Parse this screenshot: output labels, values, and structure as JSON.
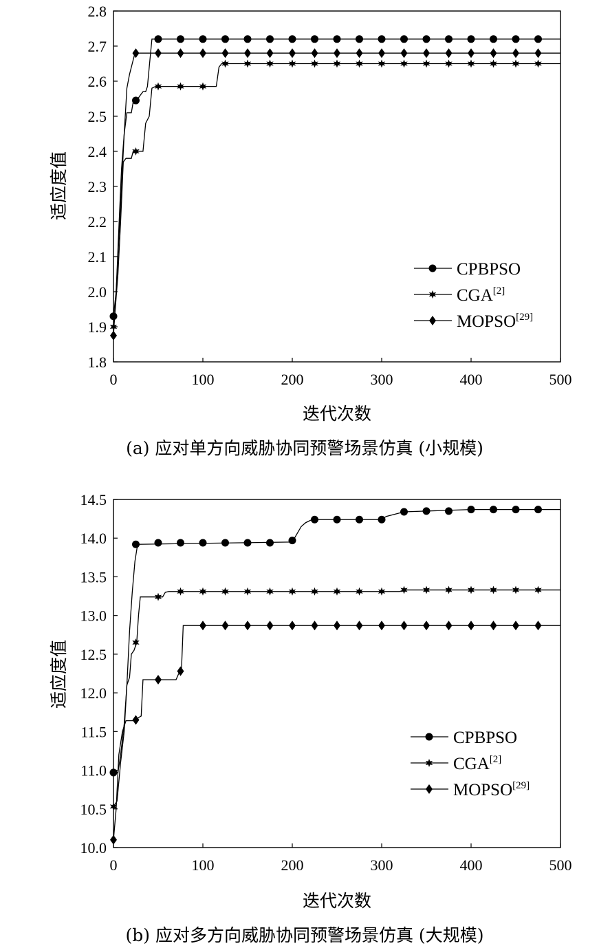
{
  "chart_data": [
    {
      "type": "line",
      "caption": "(a) 应对单方向威胁协同预警场景仿真 (小规模)",
      "xlabel": "迭代次数",
      "ylabel": "适应度值",
      "xlim": [
        0,
        500
      ],
      "ylim": [
        1.8,
        2.8
      ],
      "xticks": [
        "0",
        "100",
        "200",
        "300",
        "400",
        "500"
      ],
      "yticks": [
        "1.8",
        "1.9",
        "2.0",
        "2.1",
        "2.2",
        "2.3",
        "2.4",
        "2.5",
        "2.6",
        "2.7",
        "2.8"
      ],
      "legend_position": "bottom-right",
      "series": [
        {
          "name": "CPBPSO",
          "legend_label": "CPBPSO",
          "legend_sup": "",
          "marker": "circle",
          "points": [
            [
              0,
              1.93
            ],
            [
              3,
              2.0
            ],
            [
              6,
              2.15
            ],
            [
              9,
              2.3
            ],
            [
              12,
              2.45
            ],
            [
              15,
              2.51
            ],
            [
              20,
              2.51
            ],
            [
              22,
              2.54
            ],
            [
              26,
              2.545
            ],
            [
              30,
              2.56
            ],
            [
              33,
              2.57
            ],
            [
              36,
              2.57
            ],
            [
              38,
              2.585
            ],
            [
              40,
              2.64
            ],
            [
              43,
              2.72
            ],
            [
              500,
              2.72
            ]
          ],
          "marker_points": [
            [
              0,
              1.93
            ],
            [
              25,
              2.545
            ],
            [
              50,
              2.72
            ],
            [
              75,
              2.72
            ],
            [
              100,
              2.72
            ],
            [
              125,
              2.72
            ],
            [
              150,
              2.72
            ],
            [
              175,
              2.72
            ],
            [
              200,
              2.72
            ],
            [
              225,
              2.72
            ],
            [
              250,
              2.72
            ],
            [
              275,
              2.72
            ],
            [
              300,
              2.72
            ],
            [
              325,
              2.72
            ],
            [
              350,
              2.72
            ],
            [
              375,
              2.72
            ],
            [
              400,
              2.72
            ],
            [
              425,
              2.72
            ],
            [
              450,
              2.72
            ],
            [
              475,
              2.72
            ]
          ]
        },
        {
          "name": "CGA",
          "legend_label": "CGA",
          "legend_sup": "[2]",
          "marker": "star",
          "points": [
            [
              0,
              1.89
            ],
            [
              2,
              1.95
            ],
            [
              5,
              2.05
            ],
            [
              8,
              2.2
            ],
            [
              11,
              2.37
            ],
            [
              14,
              2.38
            ],
            [
              20,
              2.38
            ],
            [
              22,
              2.4
            ],
            [
              33,
              2.4
            ],
            [
              36,
              2.48
            ],
            [
              40,
              2.5
            ],
            [
              43,
              2.58
            ],
            [
              47,
              2.585
            ],
            [
              115,
              2.585
            ],
            [
              118,
              2.64
            ],
            [
              121,
              2.65
            ],
            [
              500,
              2.65
            ]
          ],
          "marker_points": [
            [
              0,
              1.9
            ],
            [
              25,
              2.4
            ],
            [
              50,
              2.585
            ],
            [
              75,
              2.585
            ],
            [
              100,
              2.585
            ],
            [
              125,
              2.65
            ],
            [
              150,
              2.65
            ],
            [
              175,
              2.65
            ],
            [
              200,
              2.65
            ],
            [
              225,
              2.65
            ],
            [
              250,
              2.65
            ],
            [
              275,
              2.65
            ],
            [
              300,
              2.65
            ],
            [
              325,
              2.65
            ],
            [
              350,
              2.65
            ],
            [
              375,
              2.65
            ],
            [
              400,
              2.65
            ],
            [
              425,
              2.65
            ],
            [
              450,
              2.65
            ],
            [
              475,
              2.65
            ]
          ]
        },
        {
          "name": "MOPSO",
          "legend_label": "MOPSO",
          "legend_sup": "[29]",
          "marker": "diamond",
          "points": [
            [
              0,
              1.875
            ],
            [
              3,
              2.0
            ],
            [
              6,
              2.18
            ],
            [
              9,
              2.35
            ],
            [
              12,
              2.45
            ],
            [
              15,
              2.58
            ],
            [
              18,
              2.62
            ],
            [
              21,
              2.65
            ],
            [
              24,
              2.68
            ],
            [
              500,
              2.68
            ]
          ],
          "marker_points": [
            [
              0,
              1.875
            ],
            [
              25,
              2.68
            ],
            [
              50,
              2.68
            ],
            [
              75,
              2.68
            ],
            [
              100,
              2.68
            ],
            [
              125,
              2.68
            ],
            [
              150,
              2.68
            ],
            [
              175,
              2.68
            ],
            [
              200,
              2.68
            ],
            [
              225,
              2.68
            ],
            [
              250,
              2.68
            ],
            [
              275,
              2.68
            ],
            [
              300,
              2.68
            ],
            [
              325,
              2.68
            ],
            [
              350,
              2.68
            ],
            [
              375,
              2.68
            ],
            [
              400,
              2.68
            ],
            [
              425,
              2.68
            ],
            [
              450,
              2.68
            ],
            [
              475,
              2.68
            ]
          ]
        }
      ]
    },
    {
      "type": "line",
      "caption": "(b) 应对多方向威胁协同预警场景仿真 (大规模)",
      "xlabel": "迭代次数",
      "ylabel": "适应度值",
      "xlim": [
        0,
        500
      ],
      "ylim": [
        10.0,
        14.5
      ],
      "xticks": [
        "0",
        "100",
        "200",
        "300",
        "400",
        "500"
      ],
      "yticks": [
        "10.0",
        "10.5",
        "11.0",
        "11.5",
        "12.0",
        "12.5",
        "13.0",
        "13.5",
        "14.0",
        "14.5"
      ],
      "legend_position": "bottom-right",
      "series": [
        {
          "name": "CPBPSO",
          "legend_label": "CPBPSO",
          "legend_sup": "",
          "marker": "circle",
          "points": [
            [
              0,
              10.97
            ],
            [
              5,
              10.97
            ],
            [
              8,
              11.2
            ],
            [
              12,
              11.6
            ],
            [
              15,
              12.1
            ],
            [
              18,
              12.8
            ],
            [
              21,
              13.3
            ],
            [
              24,
              13.7
            ],
            [
              27,
              13.92
            ],
            [
              200,
              13.95
            ],
            [
              205,
              14.05
            ],
            [
              210,
              14.15
            ],
            [
              215,
              14.2
            ],
            [
              222,
              14.24
            ],
            [
              300,
              14.24
            ],
            [
              305,
              14.28
            ],
            [
              315,
              14.31
            ],
            [
              325,
              14.34
            ],
            [
              400,
              14.37
            ],
            [
              500,
              14.37
            ]
          ],
          "marker_points": [
            [
              0,
              10.97
            ],
            [
              25,
              13.92
            ],
            [
              50,
              13.94
            ],
            [
              75,
              13.94
            ],
            [
              100,
              13.94
            ],
            [
              125,
              13.94
            ],
            [
              150,
              13.94
            ],
            [
              175,
              13.94
            ],
            [
              200,
              13.97
            ],
            [
              225,
              14.24
            ],
            [
              250,
              14.24
            ],
            [
              275,
              14.24
            ],
            [
              300,
              14.24
            ],
            [
              325,
              14.34
            ],
            [
              350,
              14.35
            ],
            [
              375,
              14.35
            ],
            [
              400,
              14.37
            ],
            [
              425,
              14.37
            ],
            [
              450,
              14.37
            ],
            [
              475,
              14.37
            ]
          ]
        },
        {
          "name": "CGA",
          "legend_label": "CGA",
          "legend_sup": "[2]",
          "marker": "star",
          "points": [
            [
              0,
              10.53
            ],
            [
              4,
              10.6
            ],
            [
              8,
              11.1
            ],
            [
              12,
              11.5
            ],
            [
              15,
              12.1
            ],
            [
              18,
              12.2
            ],
            [
              20,
              12.5
            ],
            [
              23,
              12.55
            ],
            [
              26,
              12.65
            ],
            [
              28,
              13.0
            ],
            [
              30,
              13.24
            ],
            [
              55,
              13.24
            ],
            [
              58,
              13.3
            ],
            [
              62,
              13.31
            ],
            [
              320,
              13.31
            ],
            [
              325,
              13.33
            ],
            [
              500,
              13.33
            ]
          ],
          "marker_points": [
            [
              0,
              10.53
            ],
            [
              25,
              12.65
            ],
            [
              50,
              13.24
            ],
            [
              75,
              13.31
            ],
            [
              100,
              13.31
            ],
            [
              125,
              13.31
            ],
            [
              150,
              13.31
            ],
            [
              175,
              13.31
            ],
            [
              200,
              13.31
            ],
            [
              225,
              13.31
            ],
            [
              250,
              13.31
            ],
            [
              275,
              13.31
            ],
            [
              300,
              13.31
            ],
            [
              325,
              13.33
            ],
            [
              350,
              13.33
            ],
            [
              375,
              13.33
            ],
            [
              400,
              13.33
            ],
            [
              425,
              13.33
            ],
            [
              450,
              13.33
            ],
            [
              475,
              13.33
            ]
          ]
        },
        {
          "name": "MOPSO",
          "legend_label": "MOPSO",
          "legend_sup": "[29]",
          "marker": "diamond",
          "points": [
            [
              0,
              10.1
            ],
            [
              3,
              10.5
            ],
            [
              6,
              11.2
            ],
            [
              10,
              11.5
            ],
            [
              14,
              11.64
            ],
            [
              25,
              11.64
            ],
            [
              28,
              11.68
            ],
            [
              31,
              11.7
            ],
            [
              33,
              12.17
            ],
            [
              70,
              12.17
            ],
            [
              73,
              12.25
            ],
            [
              76,
              12.28
            ],
            [
              78,
              12.87
            ],
            [
              500,
              12.87
            ]
          ],
          "marker_points": [
            [
              0,
              10.1
            ],
            [
              25,
              11.65
            ],
            [
              50,
              12.17
            ],
            [
              75,
              12.28
            ],
            [
              100,
              12.87
            ],
            [
              125,
              12.87
            ],
            [
              150,
              12.87
            ],
            [
              175,
              12.87
            ],
            [
              200,
              12.87
            ],
            [
              225,
              12.87
            ],
            [
              250,
              12.87
            ],
            [
              275,
              12.87
            ],
            [
              300,
              12.87
            ],
            [
              325,
              12.87
            ],
            [
              350,
              12.87
            ],
            [
              375,
              12.87
            ],
            [
              400,
              12.87
            ],
            [
              425,
              12.87
            ],
            [
              450,
              12.87
            ],
            [
              475,
              12.87
            ]
          ]
        }
      ]
    }
  ]
}
